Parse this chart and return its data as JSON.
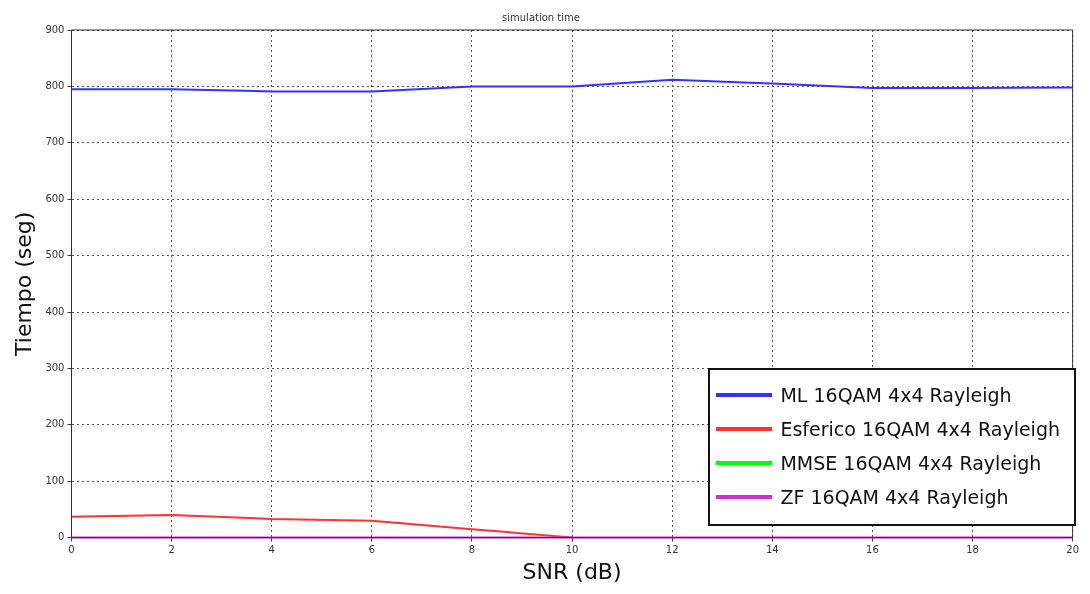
{
  "chart_data": {
    "type": "line",
    "title": "simulation time",
    "xlabel": "SNR (dB)",
    "ylabel": "Tiempo (seg)",
    "x": [
      0,
      2,
      4,
      6,
      8,
      10,
      12,
      14,
      16,
      18,
      20
    ],
    "series": [
      {
        "name": "ML 16QAM 4x4 Rayleigh",
        "color": "#3333ff",
        "values": [
          795,
          795,
          791,
          791,
          800,
          800,
          812,
          805,
          797,
          797,
          798
        ]
      },
      {
        "name": "Esferico 16QAM 4x4 Rayleigh",
        "color": "#ff3333",
        "x": [
          0,
          2,
          4,
          6,
          8,
          10
        ],
        "values": [
          37,
          40,
          33,
          30,
          15,
          0
        ]
      },
      {
        "name": "MMSE 16QAM 4x4 Rayleigh",
        "color": "#00ff00",
        "values": [
          null,
          null,
          null,
          null,
          null,
          null,
          null,
          null,
          null,
          null,
          null
        ]
      },
      {
        "name": "ZF 16QAM 4x4 Rayleigh",
        "color": "#cc33cc",
        "values": [
          0,
          0,
          0,
          0,
          0,
          0,
          0,
          0,
          0,
          0,
          0
        ]
      }
    ],
    "xlim": [
      0,
      20
    ],
    "xticks": [
      0,
      2,
      4,
      6,
      8,
      10,
      12,
      14,
      16,
      18,
      20
    ],
    "ylim": [
      0,
      900
    ],
    "yticks": [
      0,
      100,
      200,
      300,
      400,
      500,
      600,
      700,
      800,
      900
    ],
    "grid": true,
    "legend": "bottom right",
    "marker": "none",
    "line_style": "solid"
  }
}
